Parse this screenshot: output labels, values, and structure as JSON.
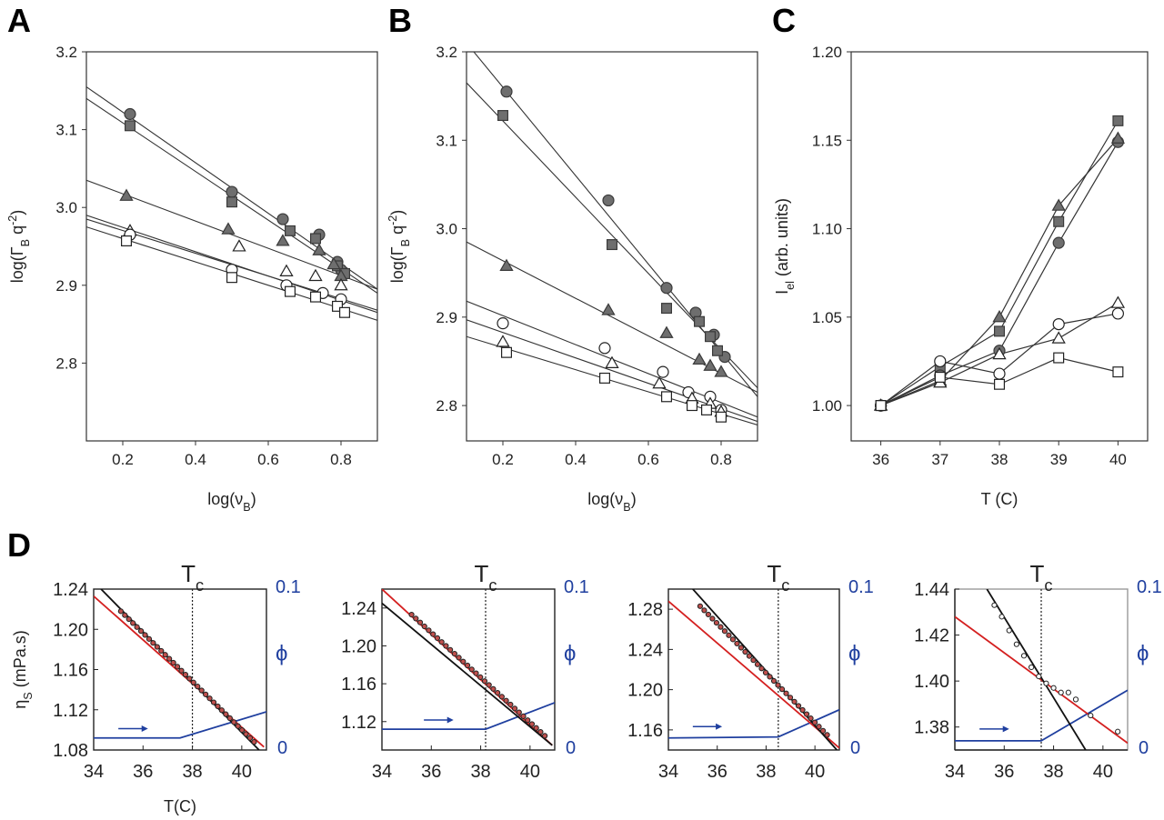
{
  "panels": [
    {
      "letter": "A",
      "type": "scatter",
      "xlabel": "log(ν_B)",
      "ylabel": "log(Γ_B q^-2)",
      "xlim": [
        0.1,
        0.9
      ],
      "ylim": [
        2.7,
        3.2
      ],
      "xticks": [
        "0.2",
        "0.4",
        "0.6",
        "0.8"
      ],
      "yticks": [
        "2.8",
        "2.9",
        "3.0",
        "3.1",
        "3.2"
      ],
      "series": [
        {
          "marker": "circle-filled",
          "x": [
            0.22,
            0.5,
            0.64,
            0.74,
            0.79,
            0.8
          ],
          "y": [
            3.12,
            3.02,
            2.985,
            2.965,
            2.93,
            2.92
          ],
          "fit": [
            [
              0.1,
              3.155
            ],
            [
              0.9,
              2.895
            ]
          ]
        },
        {
          "marker": "square-filled",
          "x": [
            0.22,
            0.5,
            0.66,
            0.73,
            0.79,
            0.81
          ],
          "y": [
            3.105,
            3.007,
            2.97,
            2.96,
            2.925,
            2.915
          ],
          "fit": [
            [
              0.1,
              3.14
            ],
            [
              0.9,
              2.89
            ]
          ]
        },
        {
          "marker": "triangle-filled",
          "x": [
            0.21,
            0.49,
            0.64,
            0.74,
            0.78,
            0.8
          ],
          "y": [
            3.015,
            2.972,
            2.957,
            2.945,
            2.927,
            2.912
          ],
          "fit": [
            [
              0.1,
              3.035
            ],
            [
              0.9,
              2.895
            ]
          ]
        },
        {
          "marker": "triangle-open",
          "x": [
            0.22,
            0.52,
            0.65,
            0.73,
            0.8
          ],
          "y": [
            2.97,
            2.95,
            2.918,
            2.912,
            2.9
          ],
          "fit": [
            [
              0.1,
              2.99
            ],
            [
              0.9,
              2.865
            ]
          ]
        },
        {
          "marker": "circle-open",
          "x": [
            0.22,
            0.5,
            0.65,
            0.75,
            0.8
          ],
          "y": [
            2.965,
            2.92,
            2.9,
            2.89,
            2.882
          ],
          "fit": [
            [
              0.1,
              2.985
            ],
            [
              0.9,
              2.868
            ]
          ]
        },
        {
          "marker": "square-open",
          "x": [
            0.21,
            0.5,
            0.66,
            0.73,
            0.79,
            0.81
          ],
          "y": [
            2.957,
            2.91,
            2.892,
            2.885,
            2.873,
            2.865
          ],
          "fit": [
            [
              0.1,
              2.975
            ],
            [
              0.9,
              2.855
            ]
          ]
        }
      ]
    },
    {
      "letter": "B",
      "type": "scatter",
      "xlabel": "log(ν_B)",
      "ylabel": "log(Γ_B q^-2)",
      "xlim": [
        0.1,
        0.9
      ],
      "ylim": [
        2.76,
        3.2
      ],
      "xticks": [
        "0.2",
        "0.4",
        "0.6",
        "0.8"
      ],
      "yticks": [
        "2.8",
        "2.9",
        "3.0",
        "3.1",
        "3.2"
      ],
      "series": [
        {
          "marker": "circle-filled",
          "x": [
            0.21,
            0.49,
            0.65,
            0.73,
            0.78,
            0.81
          ],
          "y": [
            3.155,
            3.032,
            2.933,
            2.905,
            2.88,
            2.855
          ],
          "fit": [
            [
              0.1,
              3.21
            ],
            [
              0.9,
              2.81
            ]
          ]
        },
        {
          "marker": "square-filled",
          "x": [
            0.2,
            0.5,
            0.65,
            0.74,
            0.77,
            0.79
          ],
          "y": [
            3.128,
            2.982,
            2.91,
            2.895,
            2.878,
            2.862
          ],
          "fit": [
            [
              0.1,
              3.165
            ],
            [
              0.9,
              2.82
            ]
          ]
        },
        {
          "marker": "triangle-filled",
          "x": [
            0.21,
            0.49,
            0.65,
            0.74,
            0.77,
            0.8
          ],
          "y": [
            2.958,
            2.908,
            2.882,
            2.852,
            2.845,
            2.838
          ],
          "fit": [
            [
              0.1,
              2.985
            ],
            [
              0.9,
              2.815
            ]
          ]
        },
        {
          "marker": "circle-open",
          "x": [
            0.2,
            0.48,
            0.64,
            0.71,
            0.77,
            0.8
          ],
          "y": [
            2.893,
            2.865,
            2.838,
            2.815,
            2.81,
            2.795
          ],
          "fit": [
            [
              0.1,
              2.918
            ],
            [
              0.9,
              2.787
            ]
          ]
        },
        {
          "marker": "triangle-open",
          "x": [
            0.2,
            0.5,
            0.63,
            0.72,
            0.77,
            0.8
          ],
          "y": [
            2.872,
            2.848,
            2.825,
            2.808,
            2.802,
            2.793
          ],
          "fit": [
            [
              0.1,
              2.897
            ],
            [
              0.9,
              2.782
            ]
          ]
        },
        {
          "marker": "square-open",
          "x": [
            0.21,
            0.48,
            0.65,
            0.72,
            0.76,
            0.8
          ],
          "y": [
            2.86,
            2.831,
            2.81,
            2.8,
            2.795,
            2.787
          ],
          "fit": [
            [
              0.1,
              2.878
            ],
            [
              0.9,
              2.778
            ]
          ]
        }
      ]
    },
    {
      "letter": "C",
      "type": "line",
      "xlabel": "T (C)",
      "ylabel": "I_el (arb. units)",
      "xlim": [
        35.5,
        40.5
      ],
      "ylim": [
        0.98,
        1.2
      ],
      "xticks": [
        "36",
        "37",
        "38",
        "39",
        "40"
      ],
      "yticks": [
        "1.00",
        "1.05",
        "1.10",
        "1.15",
        "1.20"
      ],
      "x": [
        36,
        37,
        38,
        39,
        40
      ],
      "series": [
        {
          "marker": "square-filled",
          "values": [
            1.0,
            1.022,
            1.042,
            1.104,
            1.161
          ]
        },
        {
          "marker": "circle-filled",
          "values": [
            1.0,
            1.017,
            1.031,
            1.092,
            1.149
          ]
        },
        {
          "marker": "triangle-filled",
          "values": [
            1.0,
            1.014,
            1.05,
            1.113,
            1.151
          ]
        },
        {
          "marker": "triangle-open",
          "values": [
            1.0,
            1.013,
            1.029,
            1.038,
            1.058
          ]
        },
        {
          "marker": "circle-open",
          "values": [
            1.0,
            1.025,
            1.018,
            1.046,
            1.052
          ]
        },
        {
          "marker": "square-open",
          "values": [
            1.0,
            1.016,
            1.012,
            1.027,
            1.019
          ]
        }
      ]
    }
  ],
  "panel_d": {
    "letter": "D",
    "ylabel": "η_S (mPa.s)",
    "xlabel": "T(C)",
    "tc_label": "T_c",
    "phi_label": "ϕ",
    "phi_ticks": [
      "0.1",
      "0"
    ],
    "xticks": [
      "34",
      "36",
      "38",
      "40"
    ],
    "xlim": [
      34,
      41
    ],
    "colors": {
      "black": "#111111",
      "red": "#d42020",
      "blue": "#1f3f9f",
      "point_fill": "#c0504d"
    },
    "subplots": [
      {
        "ylim": [
          1.08,
          1.24
        ],
        "yticks": [
          "1.08",
          "1.12",
          "1.16",
          "1.20",
          "1.24"
        ],
        "tc": 38.0,
        "black_line": [
          [
            34.3,
            1.24
          ],
          [
            40.7,
            1.08
          ]
        ],
        "red_line": [
          [
            34.0,
            1.233
          ],
          [
            40.9,
            1.083
          ]
        ],
        "points": {
          "x_start": 35.1,
          "x_end": 40.5,
          "count": 34,
          "y_start": 1.218,
          "y_end": 1.088
        },
        "phi_line": [
          [
            34.0,
            1.092
          ],
          [
            37.5,
            1.092
          ],
          [
            41.0,
            1.118
          ]
        ],
        "arrow_x": [
          35.0,
          36.2
        ],
        "arrow_y": 1.094
      },
      {
        "ylim": [
          1.09,
          1.26
        ],
        "yticks": [
          "1.12",
          "1.16",
          "1.20",
          "1.24"
        ],
        "tc": 38.2,
        "black_line": [
          [
            34.0,
            1.245
          ],
          [
            40.9,
            1.095
          ]
        ],
        "red_line": [
          [
            34.0,
            1.26
          ],
          [
            40.9,
            1.095
          ]
        ],
        "points": {
          "x_start": 35.2,
          "x_end": 40.6,
          "count": 32,
          "y_start": 1.233,
          "y_end": 1.105
        },
        "phi_line": [
          [
            34.0,
            1.112
          ],
          [
            38.2,
            1.112
          ],
          [
            41.0,
            1.14
          ]
        ],
        "arrow_x": [
          35.7,
          36.9
        ],
        "arrow_y": 1.114
      },
      {
        "ylim": [
          1.14,
          1.3
        ],
        "yticks": [
          "1.16",
          "1.20",
          "1.24",
          "1.28"
        ],
        "tc": 38.5,
        "black_line": [
          [
            35.0,
            1.3
          ],
          [
            40.9,
            1.14
          ]
        ],
        "red_line": [
          [
            34.0,
            1.288
          ],
          [
            41.0,
            1.142
          ]
        ],
        "points": {
          "x_start": 35.3,
          "x_end": 40.5,
          "count": 32,
          "y_start": 1.283,
          "y_end": 1.155
        },
        "phi_line": [
          [
            34.0,
            1.152
          ],
          [
            38.5,
            1.153
          ],
          [
            41.0,
            1.18
          ]
        ],
        "arrow_x": [
          35.0,
          36.2
        ],
        "arrow_y": 1.156
      },
      {
        "ylim": [
          1.37,
          1.44
        ],
        "yticks": [
          "1.38",
          "1.40",
          "1.42",
          "1.44"
        ],
        "tc": 37.5,
        "black_line": [
          [
            35.3,
            1.44
          ],
          [
            39.3,
            1.37
          ]
        ],
        "red_line": [
          [
            34.0,
            1.428
          ],
          [
            41.0,
            1.373
          ]
        ],
        "points_xy": [
          [
            35.6,
            1.433
          ],
          [
            35.9,
            1.428
          ],
          [
            36.2,
            1.422
          ],
          [
            36.5,
            1.416
          ],
          [
            36.8,
            1.411
          ],
          [
            37.1,
            1.406
          ],
          [
            37.4,
            1.402
          ],
          [
            37.7,
            1.399
          ],
          [
            38.0,
            1.397
          ],
          [
            38.3,
            1.395
          ],
          [
            38.6,
            1.395
          ],
          [
            38.9,
            1.392
          ],
          [
            39.5,
            1.385
          ],
          [
            40.6,
            1.378
          ]
        ],
        "phi_line": [
          [
            34.0,
            1.374
          ],
          [
            37.5,
            1.374
          ],
          [
            41.0,
            1.396
          ]
        ],
        "arrow_x": [
          35.0,
          36.2
        ],
        "arrow_y": 1.376
      }
    ]
  }
}
